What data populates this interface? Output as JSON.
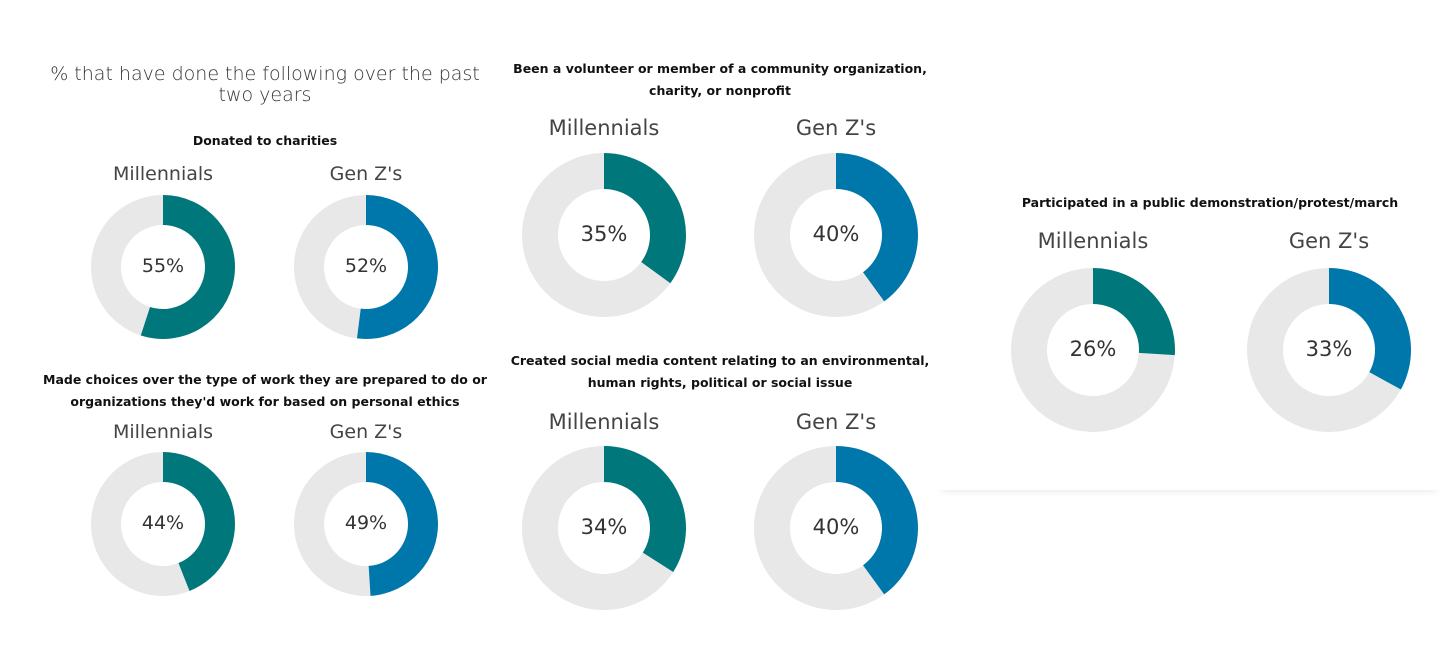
{
  "main_title": "% that have done the following over the past two years",
  "colors": {
    "millennials": "#00777a",
    "genz": "#0077aa",
    "remainder": "#e8e8e8"
  },
  "chart_data": [
    {
      "type": "pie",
      "subtype": "donut",
      "title": "Donated to charities",
      "series": [
        {
          "name": "Millennials",
          "value": 55,
          "label": "55%"
        },
        {
          "name": "Gen Z's",
          "value": 52,
          "label": "52%"
        }
      ]
    },
    {
      "type": "pie",
      "subtype": "donut",
      "title": "Made choices over the type of work they are prepared to do or organizations they'd work for based on personal ethics",
      "series": [
        {
          "name": "Millennials",
          "value": 44,
          "label": "44%"
        },
        {
          "name": "Gen Z's",
          "value": 49,
          "label": "49%"
        }
      ]
    },
    {
      "type": "pie",
      "subtype": "donut",
      "title": "Been a volunteer or member of a community organization, charity, or nonprofit",
      "series": [
        {
          "name": "Millennials",
          "value": 35,
          "label": "35%"
        },
        {
          "name": "Gen Z's",
          "value": 40,
          "label": "40%"
        }
      ]
    },
    {
      "type": "pie",
      "subtype": "donut",
      "title": "Created social media content relating to an environmental, human rights, political or social issue",
      "series": [
        {
          "name": "Millennials",
          "value": 34,
          "label": "34%"
        },
        {
          "name": "Gen Z's",
          "value": 40,
          "label": "40%"
        }
      ]
    },
    {
      "type": "pie",
      "subtype": "donut",
      "title": "Participated in a public demonstration/protest/march",
      "series": [
        {
          "name": "Millennials",
          "value": 26,
          "label": "26%"
        },
        {
          "name": "Gen Z's",
          "value": 33,
          "label": "33%"
        }
      ]
    }
  ]
}
